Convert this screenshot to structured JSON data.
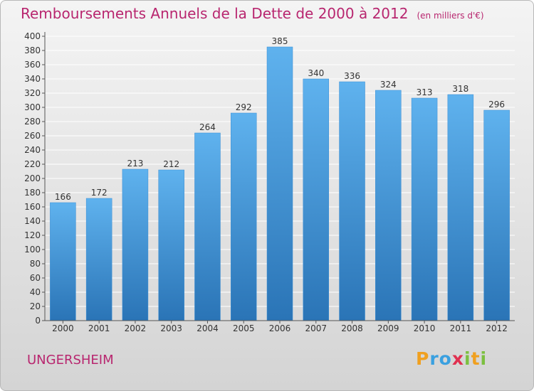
{
  "title": "Remboursements Annuels de la Dette de 2000 à 2012",
  "unit_note": "(en milliers d'€)",
  "commune": "UNGERSHEIM",
  "brand": {
    "letters": [
      "P",
      "r",
      "o",
      "x",
      "i",
      "t",
      "i"
    ],
    "colors": [
      "#f0a020",
      "#3aa0e0",
      "#3aa0e0",
      "#e03050",
      "#7cc040",
      "#f0a020",
      "#7cc040"
    ]
  },
  "colors": {
    "bar_top": "#5fb2ee",
    "bar_bottom": "#2a74b6",
    "title": "#b8266f",
    "axis": "#555555",
    "grid": "#ffffff"
  },
  "chart_data": {
    "type": "bar",
    "categories": [
      "2000",
      "2001",
      "2002",
      "2003",
      "2004",
      "2005",
      "2006",
      "2007",
      "2008",
      "2009",
      "2010",
      "2011",
      "2012"
    ],
    "values": [
      166,
      172,
      213,
      212,
      264,
      292,
      385,
      340,
      336,
      324,
      313,
      318,
      296
    ],
    "ylim": [
      0,
      400
    ],
    "ytick_step": 20,
    "grid": true,
    "xlabel": "",
    "ylabel": ""
  }
}
